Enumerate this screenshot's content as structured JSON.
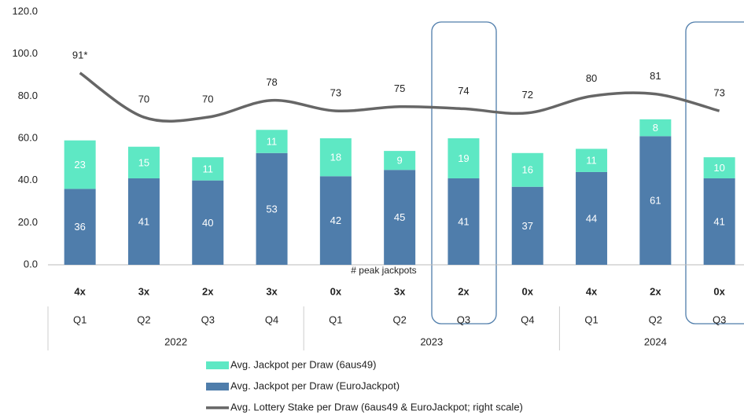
{
  "chart_data": {
    "type": "bar",
    "stacked": true,
    "category_groups": [
      {
        "label": "2022",
        "categories": [
          "Q1",
          "Q2",
          "Q3",
          "Q4"
        ]
      },
      {
        "label": "2023",
        "categories": [
          "Q1",
          "Q2",
          "Q3",
          "Q4"
        ]
      },
      {
        "label": "2024",
        "categories": [
          "Q1",
          "Q2",
          "Q3"
        ]
      }
    ],
    "ylim": [
      0,
      120
    ],
    "yticks": [
      {
        "value": 0,
        "label": "0.0"
      },
      {
        "value": 20,
        "label": "20.0"
      },
      {
        "value": 40,
        "label": "40.0"
      },
      {
        "value": 60,
        "label": "60.0"
      },
      {
        "value": 80,
        "label": "80.0"
      },
      {
        "value": 100,
        "label": "100.0"
      },
      {
        "value": 120,
        "label": "120.0"
      }
    ],
    "y2lim": [
      0,
      120
    ],
    "series": [
      {
        "name": "Avg. Jackpot per Draw (6aus49)",
        "type": "bar",
        "color": "#5ee8c4",
        "values": [
          23,
          15,
          11,
          11,
          18,
          9,
          19,
          16,
          11,
          8,
          10
        ]
      },
      {
        "name": "Avg. Jackpot per Draw (EuroJackpot)",
        "type": "bar",
        "color": "#4f7dab",
        "values": [
          36,
          41,
          40,
          53,
          42,
          45,
          41,
          37,
          44,
          61,
          41
        ]
      },
      {
        "name": "Avg. Lottery Stake per Draw (6aus49 & EuroJackpot; right scale)",
        "type": "line",
        "axis": "y2",
        "color": "#666666",
        "values": [
          91,
          70,
          70,
          78,
          73,
          75,
          74,
          72,
          80,
          81,
          73
        ],
        "value_labels": [
          "91*",
          "70",
          "70",
          "78",
          "73",
          "75",
          "74",
          "72",
          "80",
          "81",
          "73"
        ]
      }
    ],
    "peak_jackpots": {
      "label": "# peak jackpots",
      "values": [
        "4x",
        "3x",
        "2x",
        "3x",
        "0x",
        "3x",
        "2x",
        "0x",
        "4x",
        "2x",
        "0x"
      ]
    }
  }
}
